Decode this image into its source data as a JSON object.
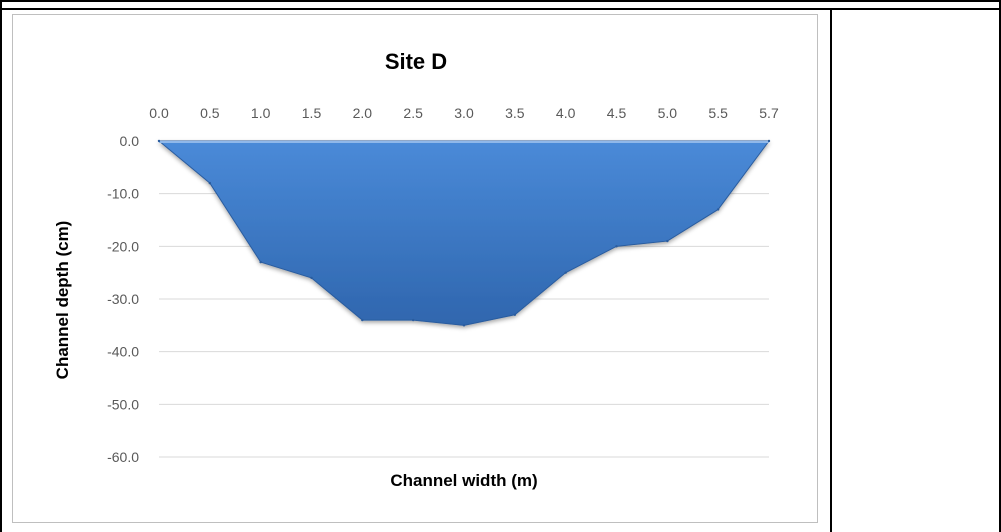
{
  "chart_data": {
    "type": "area",
    "title": "Site D",
    "xlabel": "Channel width (m)",
    "ylabel": "Channel depth (cm)",
    "x_tick_labels": [
      "0.0",
      "0.5",
      "1.0",
      "1.5",
      "2.0",
      "2.5",
      "3.0",
      "3.5",
      "4.0",
      "4.5",
      "5.0",
      "5.5",
      "5.7"
    ],
    "y_tick_labels": [
      "0.0",
      "-10.0",
      "-20.0",
      "-30.0",
      "-40.0",
      "-50.0",
      "-60.0"
    ],
    "ylim": [
      -60,
      0
    ],
    "x_axis_position": "top",
    "grid": true,
    "fill_color": "#3f7fcf",
    "series": [
      {
        "values": [
          0,
          -8,
          -23,
          -26,
          -34,
          -34,
          -35,
          -33,
          -25,
          -20,
          -19,
          -13,
          0
        ]
      }
    ]
  }
}
